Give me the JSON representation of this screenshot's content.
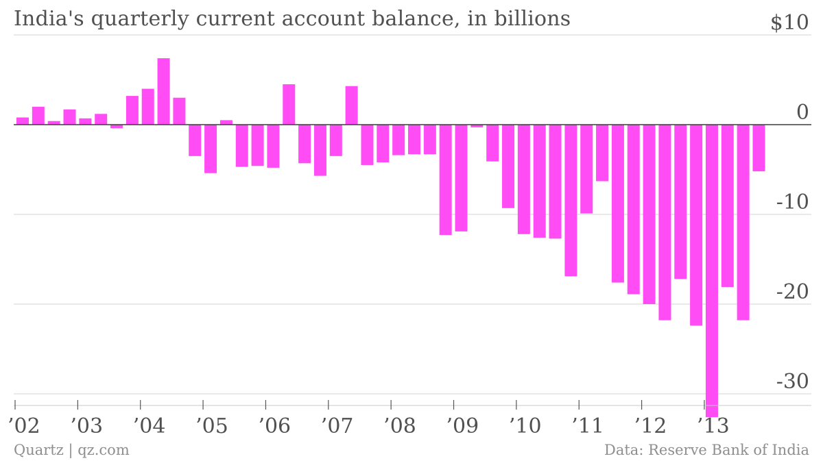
{
  "chart_data": {
    "type": "bar",
    "title": "India's quarterly current account balance, in billions",
    "y_ticks": [
      {
        "value": 10,
        "label": "$10"
      },
      {
        "value": 0,
        "label": "0"
      },
      {
        "value": -10,
        "label": "-10"
      },
      {
        "value": -20,
        "label": "-20"
      },
      {
        "value": -30,
        "label": "-30"
      }
    ],
    "ylim": [
      -32.5,
      10
    ],
    "x_year_labels": [
      "’02",
      "’03",
      "’04",
      "’05",
      "’06",
      "’07",
      "’08",
      "’09",
      "’10",
      "’11",
      "’12",
      "’13"
    ],
    "categories": [
      "2002 Q1",
      "2002 Q2",
      "2002 Q3",
      "2002 Q4",
      "2003 Q1",
      "2003 Q2",
      "2003 Q3",
      "2003 Q4",
      "2004 Q1",
      "2004 Q2",
      "2004 Q3",
      "2004 Q4",
      "2005 Q1",
      "2005 Q2",
      "2005 Q3",
      "2005 Q4",
      "2006 Q1",
      "2006 Q2",
      "2006 Q3",
      "2006 Q4",
      "2007 Q1",
      "2007 Q2",
      "2007 Q3",
      "2007 Q4",
      "2008 Q1",
      "2008 Q2",
      "2008 Q3",
      "2008 Q4",
      "2009 Q1",
      "2009 Q2",
      "2009 Q3",
      "2009 Q4",
      "2010 Q1",
      "2010 Q2",
      "2010 Q3",
      "2010 Q4",
      "2011 Q1",
      "2011 Q2",
      "2011 Q3",
      "2011 Q4",
      "2012 Q1",
      "2012 Q2",
      "2012 Q3",
      "2012 Q4",
      "2013 Q1",
      "2013 Q2",
      "2013 Q3",
      "2013 Q4"
    ],
    "values": [
      0.8,
      2.0,
      0.4,
      1.7,
      0.7,
      1.2,
      -0.4,
      3.2,
      4.0,
      7.4,
      3.0,
      -3.5,
      -5.4,
      0.5,
      -4.7,
      -4.6,
      -4.8,
      4.5,
      -4.3,
      -5.7,
      -3.5,
      4.3,
      -4.5,
      -4.2,
      -3.4,
      -3.3,
      -3.3,
      -12.3,
      -11.9,
      -0.3,
      -4.1,
      -9.3,
      -12.2,
      -12.6,
      -12.7,
      -16.9,
      -9.9,
      -6.3,
      -17.6,
      -18.9,
      -20.0,
      -21.8,
      -17.2,
      -22.4,
      -32.6,
      -18.1,
      -21.8,
      -5.2
    ],
    "bar_color": "#ff4cf4",
    "grid": true,
    "grid_color": "#dcdcdc",
    "zero_line_color": "#3c3c3c"
  },
  "footer": {
    "source_left": "Quartz | qz.com",
    "source_right": "Data: Reserve Bank of India"
  }
}
